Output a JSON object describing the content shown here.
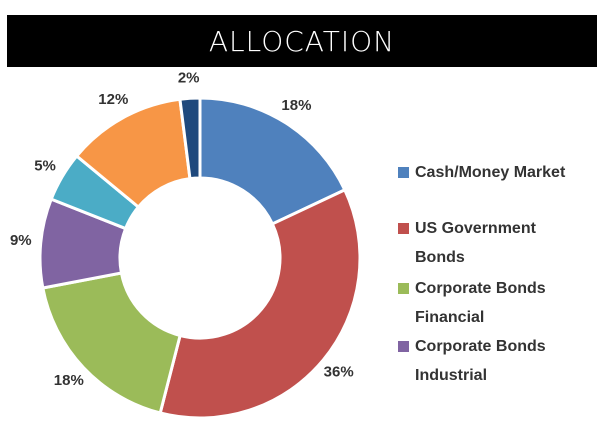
{
  "chart_data": {
    "type": "donut",
    "title": "ALLOCATION",
    "categories": [
      "Cash/Money Market",
      "US Government Bonds",
      "Corporate Bonds Financial",
      "Corporate Bonds Industrial",
      null,
      null,
      null
    ],
    "values": [
      18,
      36,
      18,
      9,
      5,
      12,
      2
    ],
    "value_labels": [
      "18%",
      "36%",
      "18%",
      "9%",
      "5%",
      "12%",
      "2%"
    ],
    "colors": [
      "#4f81bd",
      "#c0504d",
      "#9bbb59",
      "#8064a2",
      "#4bacc6",
      "#f79646",
      "#1f497d"
    ],
    "legend": "right"
  }
}
